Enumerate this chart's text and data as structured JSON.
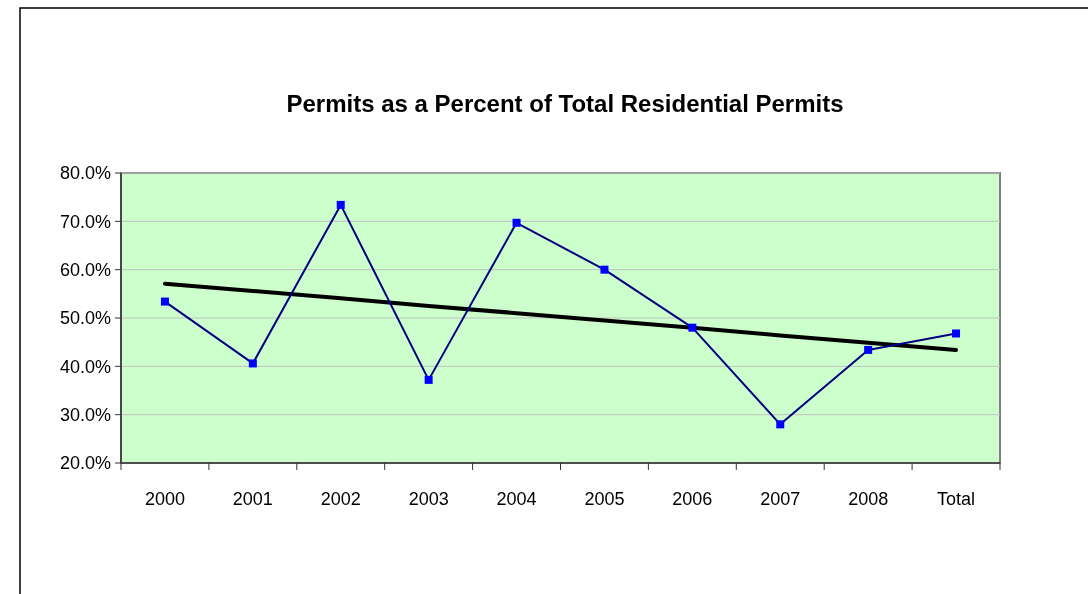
{
  "chart_data": {
    "type": "line",
    "title": "Permits as a Percent of Total Residential Permits",
    "categories": [
      "2000",
      "2001",
      "2002",
      "2003",
      "2004",
      "2005",
      "2006",
      "2007",
      "2008",
      "Total"
    ],
    "series": [
      {
        "color": "#000080",
        "marker": "square",
        "values": [
          53.4,
          40.6,
          73.4,
          37.2,
          69.7,
          60.0,
          48.0,
          28.0,
          43.4,
          46.8
        ]
      },
      {
        "type": "line",
        "color": "#000000",
        "marker": "none",
        "values": [
          57.1,
          55.6,
          54.1,
          52.5,
          51.0,
          49.5,
          48.0,
          46.4,
          44.9,
          43.4
        ]
      }
    ],
    "ylim": [
      20,
      80
    ],
    "yticks": [
      {
        "value": 20,
        "label": "20.0%"
      },
      {
        "value": 30,
        "label": "30.0%"
      },
      {
        "value": 40,
        "label": "40.0%"
      },
      {
        "value": 50,
        "label": "50.0%"
      },
      {
        "value": 60,
        "label": "60.0%"
      },
      {
        "value": 70,
        "label": "70.0%"
      },
      {
        "value": 80,
        "label": "80.0%"
      }
    ],
    "grid": "y",
    "line_style": "solid"
  }
}
